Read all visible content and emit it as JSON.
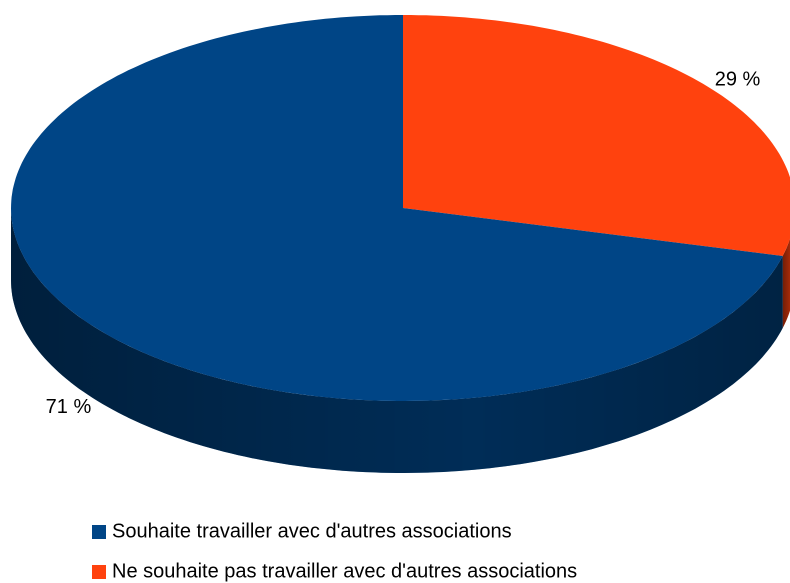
{
  "chart_data": {
    "type": "pie3d",
    "categories": [
      "Ne souhaite pas travailler avec d'autres associations",
      "Souhaite travailler avec d'autres associations"
    ],
    "values": [
      29,
      71
    ],
    "value_labels": [
      "29 %",
      "71 %"
    ],
    "colors": [
      "#ff420e",
      "#004586"
    ],
    "legend_order": [
      1,
      0
    ]
  }
}
